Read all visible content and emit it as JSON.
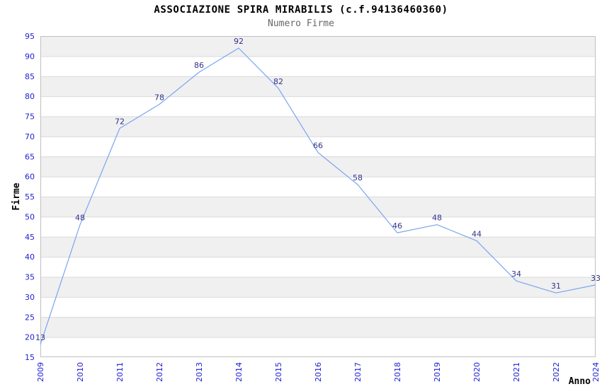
{
  "header": {
    "title": "ASSOCIAZIONE SPIRA MIRABILIS (c.f.94136460360)",
    "subtitle": "Numero Firme"
  },
  "chart_data": {
    "type": "line",
    "title": "ASSOCIAZIONE SPIRA MIRABILIS (c.f.94136460360)",
    "subtitle": "Numero Firme",
    "xlabel": "Anno",
    "ylabel": "Firme",
    "categories": [
      "2009",
      "2010",
      "2011",
      "2012",
      "2013",
      "2014",
      "2015",
      "2016",
      "2017",
      "2018",
      "2019",
      "2020",
      "2021",
      "2022",
      "2024"
    ],
    "values": [
      13,
      48,
      72,
      78,
      86,
      92,
      82,
      66,
      58,
      46,
      48,
      44,
      34,
      31,
      33
    ],
    "ylim": [
      15,
      95
    ],
    "ytick_step": 5,
    "grid": true,
    "background_bands": "alternating horizontal gray/white every 5 units",
    "legend_position": "none",
    "point_labels_visible": true,
    "colors": {
      "line": "#7aa5f0",
      "tick_label": "#2121d6",
      "value_label": "#31318c",
      "band_gray": "#f0f0f0",
      "gridline": "#d9d9d9",
      "plot_border": "#c0c0c0",
      "title": "#000000",
      "subtitle": "#666666",
      "axis_title": "#000000"
    }
  }
}
